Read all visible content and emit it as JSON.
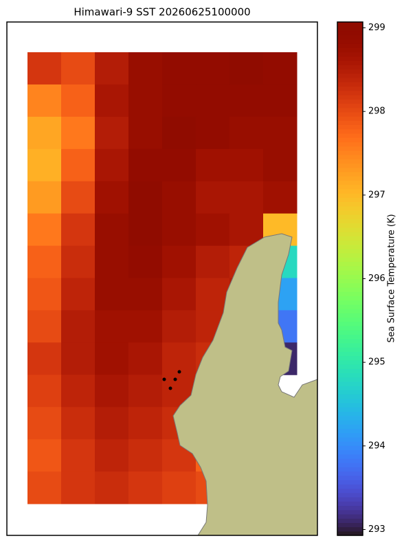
{
  "chart_data": {
    "type": "heatmap",
    "title": "Himawari-9 SST 20260625100000",
    "colorbar_label": "Sea Surface Temperature (K)",
    "colormap": "turbo",
    "colorbar_lim": [
      292.93,
      299.07
    ],
    "colorbar_ticks": [
      293,
      294,
      295,
      296,
      297,
      298,
      299
    ],
    "values": [
      [
        298.2,
        298.0,
        298.5,
        298.8,
        298.9,
        298.9,
        299.0,
        298.9
      ],
      [
        297.5,
        297.8,
        298.6,
        298.8,
        298.9,
        298.9,
        298.9,
        298.9
      ],
      [
        297.2,
        297.6,
        298.5,
        298.8,
        299.0,
        298.9,
        298.8,
        298.8
      ],
      [
        297.1,
        297.8,
        298.6,
        298.9,
        298.9,
        298.7,
        298.7,
        298.8
      ],
      [
        297.3,
        298.0,
        298.7,
        299.0,
        298.8,
        298.6,
        298.6,
        298.7
      ],
      [
        297.6,
        298.2,
        298.8,
        299.0,
        298.8,
        298.7,
        298.6,
        297.0
      ],
      [
        297.8,
        298.3,
        298.8,
        298.9,
        298.7,
        298.5,
        298.4,
        294.8
      ],
      [
        297.9,
        298.4,
        298.8,
        298.8,
        298.6,
        298.4,
        298.5,
        294.2
      ],
      [
        298.0,
        298.5,
        298.7,
        298.7,
        298.5,
        298.4,
        298.5,
        293.8
      ],
      [
        298.2,
        298.5,
        298.7,
        298.6,
        298.4,
        298.3,
        null,
        293.1
      ],
      [
        298.1,
        298.4,
        298.6,
        298.5,
        298.4,
        null,
        null,
        null
      ],
      [
        298.0,
        298.3,
        298.5,
        298.4,
        298.3,
        null,
        null,
        null
      ],
      [
        297.9,
        298.2,
        298.4,
        298.3,
        298.2,
        297.8,
        null,
        null
      ],
      [
        298.0,
        298.2,
        298.3,
        298.2,
        298.1,
        298.0,
        null,
        null
      ]
    ]
  }
}
